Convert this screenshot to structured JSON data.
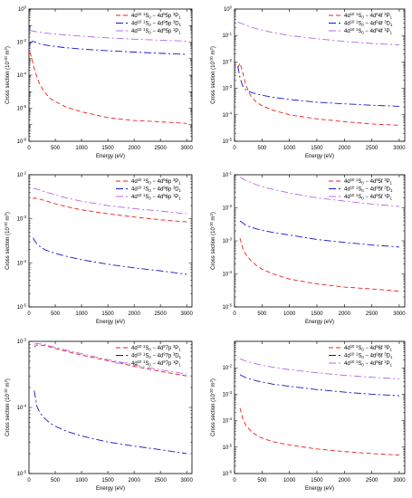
{
  "figure": {
    "xlabel": "Energy (eV)",
    "ylabel_main": "Cross section (10",
    "ylabel_exp": "-20",
    "ylabel_tail": " m",
    "ylabel_sq": "2",
    "ylabel_close": ")"
  },
  "chart_data": [
    {
      "type": "line",
      "panel": "4d95p",
      "xlim": [
        0,
        3100
      ],
      "x_ticks": [
        "0",
        "500",
        "1000",
        "1500",
        "2000",
        "2500",
        "3000"
      ],
      "ylim_log10": [
        -8,
        0
      ],
      "y_ticks": [
        {
          "log": 0,
          "base": "10",
          "exp": "0"
        },
        {
          "log": -2,
          "base": "10",
          "exp": "-2"
        },
        {
          "log": -4,
          "base": "10",
          "exp": "-4"
        },
        {
          "log": -6,
          "base": "10",
          "exp": "-6"
        },
        {
          "log": -8,
          "base": "10",
          "exp": "-8"
        }
      ],
      "x": [
        20,
        60,
        100,
        150,
        200,
        300,
        400,
        500,
        700,
        1000,
        1500,
        2000,
        2500,
        3000
      ],
      "series": [
        {
          "legend": {
            "pre": "4d",
            "s1": "10",
            "mid": " ",
            "s2": "1",
            "mid2": "S",
            "s3": "0",
            "mid3": " − 4d",
            "s4": "9",
            "mid4": "5p ",
            "s5": "3",
            "mid5": "P",
            "s6": "1"
          },
          "color": "#e8201e",
          "dash": "5,3",
          "y": [
            0.0025,
            0.0008,
            0.00025,
            8e-05,
            3e-05,
            9e-06,
            4e-06,
            2.5e-06,
            1.2e-06,
            6e-07,
            2.7e-07,
            1.8e-07,
            1.5e-07,
            1.2e-07
          ]
        },
        {
          "legend": {
            "pre": "4d",
            "s1": "10",
            "mid": " ",
            "s2": "1",
            "mid2": "S",
            "s3": "0",
            "mid3": " − 4d",
            "s4": "9",
            "mid4": "5p ",
            "s5": "3",
            "mid5": "D",
            "s6": "1"
          },
          "color": "#1414c8",
          "dash": "8,3,2,3",
          "y": [
            0.008,
            0.011,
            0.0105,
            0.009,
            0.008,
            0.0068,
            0.006,
            0.0054,
            0.0046,
            0.0038,
            0.003,
            0.0025,
            0.0021,
            0.0018
          ]
        },
        {
          "legend": {
            "pre": "4d",
            "s1": "10",
            "mid": " ",
            "s2": "1",
            "mid2": "S",
            "s3": "0",
            "mid3": " − 4d",
            "s4": "9",
            "mid4": "5p ",
            "s5": "1",
            "mid5": "P",
            "s6": "1"
          },
          "color": "#b06ae8",
          "dash": "8,3,2,3",
          "y": [
            0.05,
            0.048,
            0.045,
            0.042,
            0.04,
            0.036,
            0.033,
            0.031,
            0.027,
            0.023,
            0.018,
            0.015,
            0.013,
            0.0115
          ]
        }
      ]
    },
    {
      "type": "line",
      "panel": "4d94f",
      "xlim": [
        0,
        3100
      ],
      "x_ticks": [
        "0",
        "500",
        "1000",
        "1500",
        "2000",
        "2500",
        "3000"
      ],
      "ylim_log10": [
        -5,
        0
      ],
      "y_ticks": [
        {
          "log": 0,
          "base": "10",
          "exp": "0"
        },
        {
          "log": -1,
          "base": "10",
          "exp": "-1"
        },
        {
          "log": -2,
          "base": "10",
          "exp": "-2"
        },
        {
          "log": -3,
          "base": "10",
          "exp": "-3"
        },
        {
          "log": -4,
          "base": "10",
          "exp": "-4"
        },
        {
          "log": -5,
          "base": "10",
          "exp": "-5"
        }
      ],
      "x": [
        60,
        100,
        150,
        200,
        250,
        300,
        400,
        500,
        700,
        1000,
        1500,
        2000,
        2500,
        3000
      ],
      "series": [
        {
          "legend": {
            "pre": "4d",
            "s1": "10",
            "mid": " ",
            "s2": "1",
            "mid2": "S",
            "s3": "0",
            "mid3": " − 4d",
            "s4": "9",
            "mid4": "4f ",
            "s5": "3",
            "mid5": "P",
            "s6": "1"
          },
          "color": "#e8201e",
          "dash": "5,3",
          "y": [
            0.006,
            0.009,
            0.004,
            0.0015,
            0.0008,
            0.0005,
            0.0003,
            0.00022,
            0.00015,
            0.0001,
            7e-05,
            5.5e-05,
            4.5e-05,
            4e-05
          ]
        },
        {
          "legend": {
            "pre": "4d",
            "s1": "10",
            "mid": " ",
            "s2": "1",
            "mid2": "S",
            "s3": "0",
            "mid3": " − 4d",
            "s4": "9",
            "mid4": "4f ",
            "s5": "3",
            "mid5": "D",
            "s6": "1"
          },
          "color": "#1414c8",
          "dash": "8,3,2,3",
          "y": [
            0.007,
            0.0025,
            0.0012,
            0.0009,
            0.0008,
            0.0007,
            0.00062,
            0.00055,
            0.00046,
            0.00038,
            0.0003,
            0.00026,
            0.00023,
            0.00021
          ]
        },
        {
          "legend": {
            "pre": "4d",
            "s1": "10",
            "mid": " ",
            "s2": "1",
            "mid2": "S",
            "s3": "0",
            "mid3": " − 4d",
            "s4": "9",
            "mid4": "4f ",
            "s5": "1",
            "mid5": "P",
            "s6": "1"
          },
          "color": "#b06ae8",
          "dash": "8,3,2,3",
          "y": [
            0.32,
            0.3,
            0.27,
            0.25,
            0.23,
            0.21,
            0.18,
            0.16,
            0.13,
            0.1,
            0.075,
            0.06,
            0.05,
            0.044
          ]
        }
      ]
    },
    {
      "type": "line",
      "panel": "4d96p",
      "xlim": [
        0,
        3100
      ],
      "x_ticks": [
        "0",
        "500",
        "1000",
        "1500",
        "2000",
        "2500",
        "3000"
      ],
      "ylim_log10": [
        -5,
        -2
      ],
      "y_ticks": [
        {
          "log": -2,
          "base": "10",
          "exp": "-2"
        },
        {
          "log": -3,
          "base": "10",
          "exp": "-3"
        },
        {
          "log": -4,
          "base": "10",
          "exp": "-4"
        },
        {
          "log": -5,
          "base": "10",
          "exp": "-5"
        }
      ],
      "x": [
        80,
        100,
        150,
        200,
        300,
        400,
        500,
        700,
        1000,
        1500,
        2000,
        2500,
        3000
      ],
      "series": [
        {
          "legend": {
            "pre": "4d",
            "s1": "10",
            "mid": " ",
            "s2": "1",
            "mid2": "S",
            "s3": "0",
            "mid3": " − 4d",
            "s4": "9",
            "mid4": "6p ",
            "s5": "3",
            "mid5": "P",
            "s6": "1"
          },
          "color": "#e8201e",
          "dash": "5,3",
          "y": [
            0.0028,
            0.003,
            0.0029,
            0.0028,
            0.0026,
            0.0024,
            0.0022,
            0.0019,
            0.0016,
            0.0013,
            0.0011,
            0.00095,
            0.00085
          ]
        },
        {
          "legend": {
            "pre": "4d",
            "s1": "10",
            "mid": " ",
            "s2": "1",
            "mid2": "S",
            "s3": "0",
            "mid3": " − 4d",
            "s4": "9",
            "mid4": "6p ",
            "s5": "3",
            "mid5": "D",
            "s6": "1"
          },
          "color": "#1414c8",
          "dash": "8,3,2,3",
          "y": [
            0.00037,
            0.00033,
            0.00027,
            0.00024,
            0.0002,
            0.00018,
            0.000165,
            0.000142,
            0.000118,
            9.3e-05,
            7.7e-05,
            6.6e-05,
            5.5e-05
          ]
        },
        {
          "legend": {
            "pre": "4d",
            "s1": "10",
            "mid": " ",
            "s2": "1",
            "mid2": "S",
            "s3": "0",
            "mid3": " − 4d",
            "s4": "9",
            "mid4": "6p ",
            "s5": "1",
            "mid5": "P",
            "s6": "1"
          },
          "color": "#b06ae8",
          "dash": "8,3,2,3",
          "y": [
            0.0048,
            0.0049,
            0.0047,
            0.0045,
            0.0041,
            0.0038,
            0.0035,
            0.003,
            0.0025,
            0.002,
            0.0017,
            0.0015,
            0.0013
          ]
        }
      ]
    },
    {
      "type": "line",
      "panel": "4d95f",
      "xlim": [
        0,
        3100
      ],
      "x_ticks": [
        "0",
        "500",
        "1000",
        "1500",
        "2000",
        "2500",
        "3000"
      ],
      "ylim_log10": [
        -5,
        -1
      ],
      "y_ticks": [
        {
          "log": -1,
          "base": "10",
          "exp": "-1"
        },
        {
          "log": -2,
          "base": "10",
          "exp": "-2"
        },
        {
          "log": -3,
          "base": "10",
          "exp": "-3"
        },
        {
          "log": -4,
          "base": "10",
          "exp": "-4"
        },
        {
          "log": -5,
          "base": "10",
          "exp": "-5"
        }
      ],
      "x": [
        100,
        150,
        200,
        300,
        400,
        500,
        700,
        1000,
        1500,
        2000,
        2500,
        3000
      ],
      "series": [
        {
          "legend": {
            "pre": "4d",
            "s1": "10",
            "mid": " ",
            "s2": "1",
            "mid2": "S",
            "s3": "0",
            "mid3": " − 4d",
            "s4": "9",
            "mid4": "5f ",
            "s5": "3",
            "mid5": "P",
            "s6": "1"
          },
          "color": "#e8201e",
          "dash": "5,3",
          "y": [
            0.0012,
            0.0006,
            0.0004,
            0.00025,
            0.00018,
            0.00014,
            0.0001,
            7e-05,
            5e-05,
            4e-05,
            3.5e-05,
            3e-05
          ]
        },
        {
          "legend": {
            "pre": "4d",
            "s1": "10",
            "mid": " ",
            "s2": "1",
            "mid2": "S",
            "s3": "0",
            "mid3": " − 4d",
            "s4": "9",
            "mid4": "5f ",
            "s5": "3",
            "mid5": "D",
            "s6": "1"
          },
          "color": "#1414c8",
          "dash": "8,3,2,3",
          "y": [
            0.004,
            0.0035,
            0.003,
            0.0026,
            0.0023,
            0.0021,
            0.0018,
            0.0015,
            0.0011,
            0.0009,
            0.00075,
            0.00065
          ]
        },
        {
          "legend": {
            "pre": "4d",
            "s1": "10",
            "mid": " ",
            "s2": "1",
            "mid2": "S",
            "s3": "0",
            "mid3": " − 4d",
            "s4": "9",
            "mid4": "5f ",
            "s5": "1",
            "mid5": "P",
            "s6": "1"
          },
          "color": "#b06ae8",
          "dash": "8,3,2,3",
          "y": [
            0.085,
            0.075,
            0.068,
            0.058,
            0.05,
            0.044,
            0.036,
            0.028,
            0.02,
            0.016,
            0.013,
            0.011
          ]
        }
      ]
    },
    {
      "type": "line",
      "panel": "4d97p",
      "xlim": [
        0,
        3100
      ],
      "x_ticks": [
        "0",
        "500",
        "1000",
        "1500",
        "2000",
        "2500",
        "3000"
      ],
      "ylim_log10": [
        -5,
        -3
      ],
      "y_ticks": [
        {
          "log": -3,
          "base": "10",
          "exp": "-3"
        },
        {
          "log": -4,
          "base": "10",
          "exp": "-4"
        },
        {
          "log": -5,
          "base": "10",
          "exp": "-5"
        }
      ],
      "x": [
        100,
        150,
        200,
        300,
        400,
        500,
        700,
        1000,
        1500,
        2000,
        2500,
        3000
      ],
      "series": [
        {
          "legend": {
            "pre": "4d",
            "s1": "10",
            "mid": " ",
            "s2": "1",
            "mid2": "S",
            "s3": "0",
            "mid3": " − 4d",
            "s4": "9",
            "mid4": "7p ",
            "s5": "3",
            "mid5": "P",
            "s6": "1"
          },
          "color": "#e8201e",
          "dash": "5,3",
          "y": [
            0.00082,
            0.00088,
            0.00088,
            0.00086,
            0.00082,
            0.00078,
            0.00071,
            0.00062,
            0.00051,
            0.00042,
            0.00035,
            0.0003
          ]
        },
        {
          "legend": {
            "pre": "4d",
            "s1": "10",
            "mid": " ",
            "s2": "1",
            "mid2": "S",
            "s3": "0",
            "mid3": " − 4d",
            "s4": "9",
            "mid4": "7p ",
            "s5": "3",
            "mid5": "D",
            "s6": "1"
          },
          "color": "#1414c8",
          "dash": "8,3,2,3",
          "y": [
            0.00018,
            0.000105,
            8.5e-05,
            6.8e-05,
            5.8e-05,
            5.2e-05,
            4.4e-05,
            3.7e-05,
            3e-05,
            2.6e-05,
            2.3e-05,
            2e-05
          ]
        },
        {
          "legend": {
            "pre": "4d",
            "s1": "10",
            "mid": " ",
            "s2": "1",
            "mid2": "S",
            "s3": "0",
            "mid3": " − 4d",
            "s4": "9",
            "mid4": "7p ",
            "s5": "1",
            "mid5": "P",
            "s6": "1"
          },
          "color": "#b06ae8",
          "dash": "8,3,2,3",
          "y": [
            0.0009,
            0.00093,
            0.00092,
            0.00089,
            0.00085,
            0.00081,
            0.00074,
            0.00065,
            0.00053,
            0.00044,
            0.00037,
            0.00032
          ]
        }
      ]
    },
    {
      "type": "line",
      "panel": "4d96f",
      "xlim": [
        0,
        3100
      ],
      "x_ticks": [
        "0",
        "500",
        "1000",
        "1500",
        "2000",
        "2500",
        "3000"
      ],
      "ylim_log10": [
        -6,
        -1
      ],
      "y_ticks": [
        {
          "log": -2,
          "base": "10",
          "exp": "-2"
        },
        {
          "log": -3,
          "base": "10",
          "exp": "-3"
        },
        {
          "log": -4,
          "base": "10",
          "exp": "-4"
        },
        {
          "log": -5,
          "base": "10",
          "exp": "-5"
        },
        {
          "log": -6,
          "base": "10",
          "exp": "-6"
        }
      ],
      "x": [
        100,
        150,
        200,
        300,
        400,
        500,
        700,
        1000,
        1500,
        2000,
        2500,
        3000
      ],
      "series": [
        {
          "legend": {
            "pre": "4d",
            "s1": "10",
            "mid": " ",
            "s2": "1",
            "mid2": "S",
            "s3": "0",
            "mid3": " − 4d",
            "s4": "9",
            "mid4": "6f ",
            "s5": "3",
            "mid5": "P",
            "s6": "1"
          },
          "color": "#e8201e",
          "dash": "5,3",
          "y": [
            0.0003,
            0.00012,
            7e-05,
            4e-05,
            2.8e-05,
            2.2e-05,
            1.6e-05,
            1.2e-05,
            8.5e-06,
            6.8e-06,
            5.7e-06,
            5e-06
          ]
        },
        {
          "legend": {
            "pre": "4d",
            "s1": "10",
            "mid": " ",
            "s2": "1",
            "mid2": "S",
            "s3": "0",
            "mid3": " − 4d",
            "s4": "9",
            "mid4": "6f ",
            "s5": "3",
            "mid5": "D",
            "s6": "1"
          },
          "color": "#1414c8",
          "dash": "8,3,2,3",
          "y": [
            0.0055,
            0.0048,
            0.0043,
            0.0037,
            0.0032,
            0.0029,
            0.0024,
            0.002,
            0.0015,
            0.0012,
            0.001,
            0.00088
          ]
        },
        {
          "legend": {
            "pre": "4d",
            "s1": "10",
            "mid": " ",
            "s2": "1",
            "mid2": "S",
            "s3": "0",
            "mid3": " − 4d",
            "s4": "9",
            "mid4": "6f ",
            "s5": "1",
            "mid5": "P",
            "s6": "1"
          },
          "color": "#b06ae8",
          "dash": "8,3,2,3",
          "y": [
            0.022,
            0.02,
            0.018,
            0.016,
            0.014,
            0.0125,
            0.0105,
            0.0085,
            0.0065,
            0.0052,
            0.0044,
            0.0038
          ]
        }
      ]
    }
  ]
}
